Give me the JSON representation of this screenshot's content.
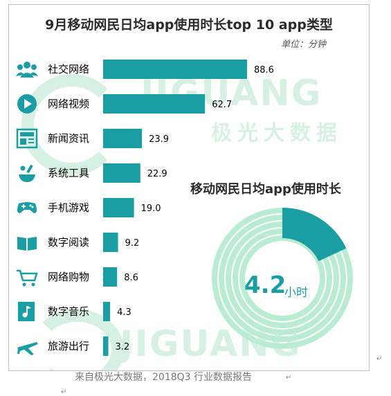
{
  "chart_data": [
    {
      "type": "bar",
      "orientation": "horizontal",
      "title": "9月移动网民日均app使用时长top 10 app类型",
      "unit": "单位：分钟",
      "categories": [
        "社交网络",
        "网络视频",
        "新闻资讯",
        "系统工具",
        "手机游戏",
        "数字阅读",
        "网络购物",
        "数字音乐",
        "旅游出行"
      ],
      "values": [
        88.6,
        62.7,
        23.9,
        22.9,
        19.0,
        9.2,
        8.6,
        4.3,
        3.2
      ],
      "value_labels": [
        "88.6",
        "62.7",
        "23.9",
        "22.9",
        "19.0",
        "9.2",
        "8.6",
        "4.3",
        "3.2"
      ],
      "icons": [
        "people-icon",
        "play-icon",
        "newspaper-icon",
        "tools-icon",
        "gamepad-icon",
        "book-icon",
        "cart-icon",
        "music-icon",
        "airplane-icon"
      ],
      "xlim": [
        0,
        100
      ],
      "grid": false,
      "color": "#1a9ea3"
    },
    {
      "type": "pie",
      "style": "donut",
      "title": "移动网民日均app使用时长",
      "center_value": "4.2",
      "center_unit": "小时",
      "highlight_fraction": 0.18,
      "colors": {
        "highlight": "#1a9ea3",
        "rings": "#b9ecd1"
      }
    }
  ],
  "watermark": {
    "text": "JIGUANG",
    "text_cn": "极光大数据"
  },
  "source": "来自极光大数据，2018Q3 行业数据报告",
  "marks": [
    "↵",
    "↵",
    "↵"
  ]
}
